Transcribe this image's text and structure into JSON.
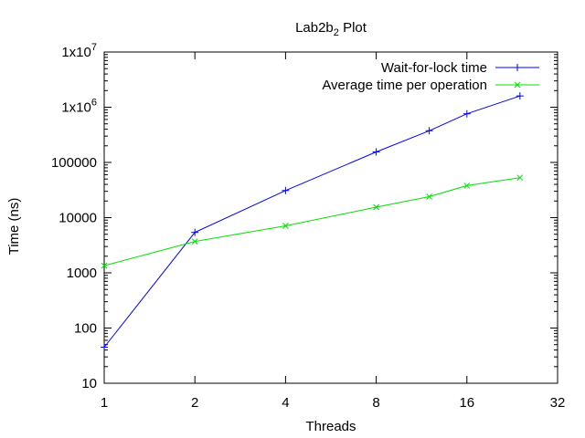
{
  "chart_data": {
    "type": "line",
    "title": "Lab2b",
    "title_subscript": "2",
    "title_suffix": " Plot",
    "xlabel": "Threads",
    "ylabel": "Time (ns)",
    "x_scale": "log2",
    "y_scale": "log10",
    "xlim": [
      1,
      32
    ],
    "ylim": [
      10,
      10000000
    ],
    "x_ticks": [
      1,
      2,
      4,
      8,
      16,
      32
    ],
    "x_tick_labels": [
      "1",
      "2",
      "4",
      "8",
      "16",
      "32"
    ],
    "y_ticks": [
      10,
      100,
      1000,
      10000,
      100000,
      1000000,
      10000000
    ],
    "y_tick_labels": [
      {
        "base": "10",
        "exp": ""
      },
      {
        "base": "100",
        "exp": ""
      },
      {
        "base": "1000",
        "exp": ""
      },
      {
        "base": "10000",
        "exp": ""
      },
      {
        "base": "100000",
        "exp": ""
      },
      {
        "base": "1x10",
        "exp": "6"
      },
      {
        "base": "1x10",
        "exp": "7"
      }
    ],
    "grid": false,
    "legend_position": "top-right",
    "series": [
      {
        "name": "Wait-for-lock time",
        "color": "#0000ff",
        "marker": "plus",
        "x": [
          1,
          2,
          4,
          8,
          12,
          16,
          24
        ],
        "y": [
          45,
          5400,
          31000,
          155000,
          375000,
          760000,
          1600000
        ]
      },
      {
        "name": "Average time per operation",
        "color": "#00e000",
        "marker": "cross",
        "x": [
          1,
          2,
          4,
          8,
          12,
          16,
          24
        ],
        "y": [
          1350,
          3700,
          7100,
          15500,
          24000,
          38000,
          53000
        ]
      }
    ]
  }
}
